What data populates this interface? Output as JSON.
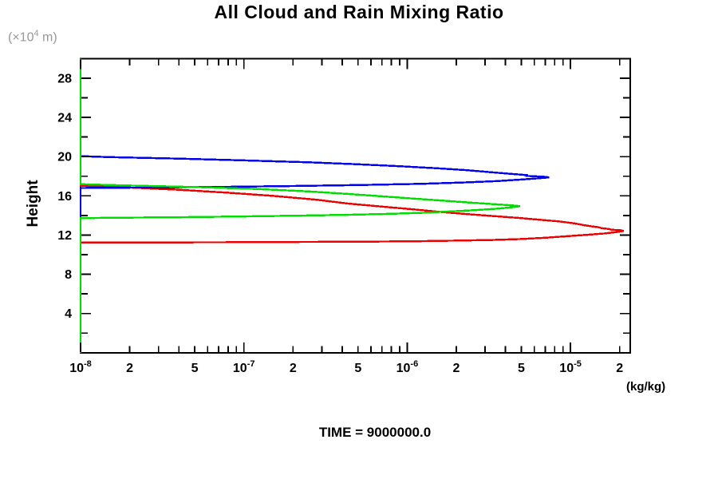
{
  "chart_data": {
    "type": "line",
    "title": "All Cloud and Rain Mixing Ratio",
    "annotation": "TIME = 9000000.0",
    "xlabel": "(kg/kg)",
    "ylabel": "Height",
    "y_unit": {
      "prefix": "(×10",
      "exp": "4",
      "suffix": " m)"
    },
    "x_scale": "log",
    "xlim": [
      1e-08,
      2.3e-05
    ],
    "ylim": [
      0,
      30
    ],
    "grid": false,
    "legend": "none",
    "frame_color": "#000000",
    "x_major_ticks": [
      1e-08,
      1e-07,
      1e-06,
      1e-05
    ],
    "x_minor_ticks": [
      2e-08,
      3e-08,
      4e-08,
      5e-08,
      6e-08,
      7e-08,
      8e-08,
      9e-08,
      2e-07,
      3e-07,
      4e-07,
      5e-07,
      6e-07,
      7e-07,
      8e-07,
      9e-07,
      2e-06,
      3e-06,
      4e-06,
      5e-06,
      6e-06,
      7e-06,
      8e-06,
      9e-06,
      2e-05
    ],
    "x_tick_labels": [
      {
        "value": 1e-08,
        "mantissa": "10",
        "exponent": "-8"
      },
      {
        "value": 2e-08,
        "mantissa": "2"
      },
      {
        "value": 5e-08,
        "mantissa": "5"
      },
      {
        "value": 1e-07,
        "mantissa": "10",
        "exponent": "-7"
      },
      {
        "value": 2e-07,
        "mantissa": "2"
      },
      {
        "value": 5e-07,
        "mantissa": "5"
      },
      {
        "value": 1e-06,
        "mantissa": "10",
        "exponent": "-6"
      },
      {
        "value": 2e-06,
        "mantissa": "2"
      },
      {
        "value": 5e-06,
        "mantissa": "5"
      },
      {
        "value": 1e-05,
        "mantissa": "10",
        "exponent": "-5"
      },
      {
        "value": 2e-05,
        "mantissa": "2"
      }
    ],
    "y_major_ticks": [
      4,
      8,
      12,
      16,
      20,
      24,
      28
    ],
    "y_minor_ticks": [
      2,
      6,
      10,
      14,
      18,
      22,
      26
    ],
    "y_tick_labels": [
      "4",
      "8",
      "12",
      "16",
      "20",
      "24",
      "28"
    ],
    "series": [
      {
        "name": "red",
        "color": "#ee0000",
        "points": [
          [
            1e-08,
            30
          ],
          [
            1e-08,
            17.02
          ],
          [
            2e-08,
            16.85
          ],
          [
            4e-08,
            16.62
          ],
          [
            8e-08,
            16.32
          ],
          [
            1.5e-07,
            16.0
          ],
          [
            2.8e-07,
            15.6
          ],
          [
            4.3e-07,
            15.22
          ],
          [
            7e-07,
            14.9
          ],
          [
            1.1e-06,
            14.62
          ],
          [
            1.6e-06,
            14.36
          ],
          [
            2.4e-06,
            14.12
          ],
          [
            3.5e-06,
            13.92
          ],
          [
            4.9e-06,
            13.74
          ],
          [
            6.5e-06,
            13.56
          ],
          [
            8.4e-06,
            13.4
          ],
          [
            1.05e-05,
            13.2
          ],
          [
            1.2e-05,
            13.02
          ],
          [
            1.35e-05,
            12.88
          ],
          [
            1.48e-05,
            12.8
          ],
          [
            1.55e-05,
            12.7
          ],
          [
            1.72e-05,
            12.62
          ],
          [
            1.78e-05,
            12.54
          ],
          [
            2.02e-05,
            12.5
          ],
          [
            2.12e-05,
            12.42
          ],
          [
            1.9e-05,
            12.3
          ],
          [
            1.6e-05,
            12.16
          ],
          [
            1.25e-05,
            12.02
          ],
          [
            9.5e-06,
            11.88
          ],
          [
            7e-06,
            11.73
          ],
          [
            5e-06,
            11.6
          ],
          [
            3.3e-06,
            11.5
          ],
          [
            2e-06,
            11.43
          ],
          [
            1.1e-06,
            11.37
          ],
          [
            5.5e-07,
            11.33
          ],
          [
            2.5e-07,
            11.3
          ],
          [
            1e-07,
            11.27
          ],
          [
            4e-08,
            11.25
          ],
          [
            1.5e-08,
            11.24
          ],
          [
            1e-08,
            11.24
          ],
          [
            1e-08,
            0
          ]
        ]
      },
      {
        "name": "blue",
        "color": "#0000ee",
        "points": [
          [
            1e-08,
            30
          ],
          [
            1e-08,
            20.05
          ],
          [
            1.5e-08,
            19.95
          ],
          [
            4e-08,
            19.8
          ],
          [
            1e-07,
            19.62
          ],
          [
            2.5e-07,
            19.42
          ],
          [
            5e-07,
            19.22
          ],
          [
            9e-07,
            19.02
          ],
          [
            1.5e-06,
            18.82
          ],
          [
            2.3e-06,
            18.62
          ],
          [
            3.2e-06,
            18.42
          ],
          [
            4.2e-06,
            18.26
          ],
          [
            5e-06,
            18.16
          ],
          [
            5.5e-06,
            18.1
          ],
          [
            5.3e-06,
            18.04
          ],
          [
            6.3e-06,
            17.98
          ],
          [
            7e-06,
            17.94
          ],
          [
            7.4e-06,
            17.88
          ],
          [
            6.5e-06,
            17.8
          ],
          [
            5e-06,
            17.66
          ],
          [
            3.5e-06,
            17.5
          ],
          [
            2.2e-06,
            17.36
          ],
          [
            1.2e-06,
            17.22
          ],
          [
            5e-07,
            17.1
          ],
          [
            2e-07,
            17.0
          ],
          [
            8e-08,
            16.92
          ],
          [
            3e-08,
            16.86
          ],
          [
            1e-08,
            16.8
          ],
          [
            1e-08,
            0
          ]
        ]
      },
      {
        "name": "green",
        "color": "#00dd00",
        "points": [
          [
            1e-08,
            30
          ],
          [
            1e-08,
            17.18
          ],
          [
            2e-08,
            17.05
          ],
          [
            5e-08,
            16.9
          ],
          [
            1.2e-07,
            16.7
          ],
          [
            2.5e-07,
            16.45
          ],
          [
            4.3e-07,
            16.2
          ],
          [
            7e-07,
            15.95
          ],
          [
            1.1e-06,
            15.72
          ],
          [
            1.7e-06,
            15.5
          ],
          [
            2.4e-06,
            15.32
          ],
          [
            3.2e-06,
            15.18
          ],
          [
            4e-06,
            15.07
          ],
          [
            4.6e-06,
            15.0
          ],
          [
            4.9e-06,
            14.94
          ],
          [
            4.5e-06,
            14.85
          ],
          [
            3.6e-06,
            14.7
          ],
          [
            2.7e-06,
            14.56
          ],
          [
            1.9e-06,
            14.42
          ],
          [
            1.3e-06,
            14.28
          ],
          [
            8e-07,
            14.17
          ],
          [
            4.5e-07,
            14.07
          ],
          [
            2.2e-07,
            13.98
          ],
          [
            1e-07,
            13.9
          ],
          [
            4e-08,
            13.82
          ],
          [
            1.5e-08,
            13.76
          ],
          [
            1e-08,
            13.72
          ],
          [
            1e-08,
            0
          ]
        ]
      }
    ]
  }
}
